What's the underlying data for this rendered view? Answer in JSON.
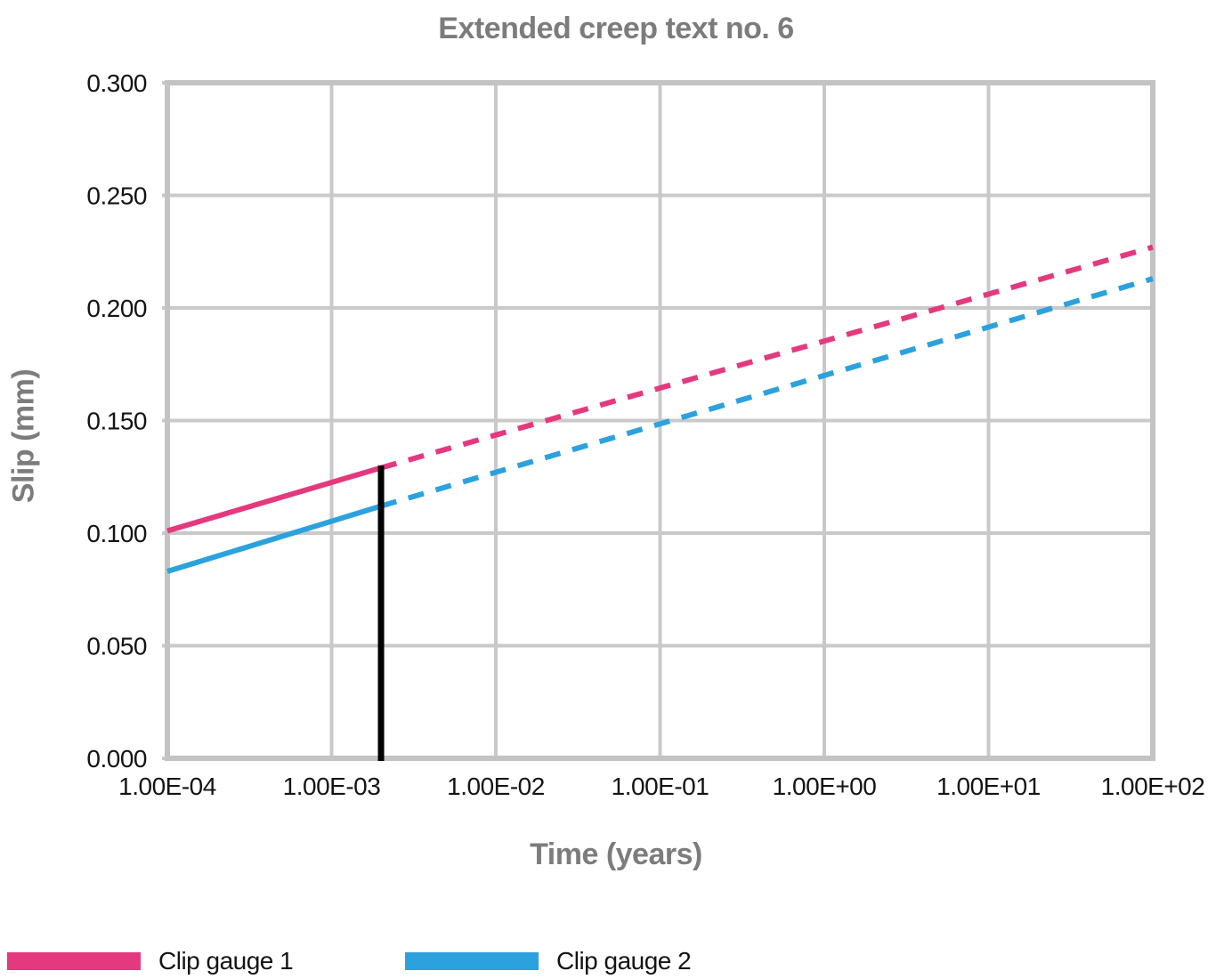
{
  "chart_data": {
    "type": "line",
    "title": "Extended creep text no. 6",
    "xlabel": "Time (years)",
    "ylabel": "Slip (mm)",
    "x_scale": "log",
    "xlim": [
      0.0001,
      100
    ],
    "ylim": [
      0,
      0.3
    ],
    "grid": true,
    "x_ticks": [
      {
        "value": 0.0001,
        "label": "1.00E-04"
      },
      {
        "value": 0.001,
        "label": "1.00E-03"
      },
      {
        "value": 0.01,
        "label": "1.00E-02"
      },
      {
        "value": 0.1,
        "label": "1.00E-01"
      },
      {
        "value": 1,
        "label": "1.00E+00"
      },
      {
        "value": 10,
        "label": "1.00E+01"
      },
      {
        "value": 100,
        "label": "1.00E+02"
      }
    ],
    "y_ticks": [
      {
        "value": 0.0,
        "label": "0.000"
      },
      {
        "value": 0.05,
        "label": "0.050"
      },
      {
        "value": 0.1,
        "label": "0.100"
      },
      {
        "value": 0.15,
        "label": "0.150"
      },
      {
        "value": 0.2,
        "label": "0.200"
      },
      {
        "value": 0.25,
        "label": "0.250"
      },
      {
        "value": 0.3,
        "label": "0.300"
      }
    ],
    "series": [
      {
        "name": "Clip gauge 1",
        "color": "#E4397E",
        "solid_segment": {
          "x": [
            0.0001,
            0.002
          ],
          "y": [
            0.101,
            0.129
          ]
        },
        "dashed_segment": {
          "x": [
            0.002,
            100
          ],
          "y": [
            0.129,
            0.227
          ]
        }
      },
      {
        "name": "Clip gauge 2",
        "color": "#2BA2DE",
        "solid_segment": {
          "x": [
            0.0001,
            0.002
          ],
          "y": [
            0.083,
            0.112
          ]
        },
        "dashed_segment": {
          "x": [
            0.002,
            100
          ],
          "y": [
            0.112,
            0.213
          ]
        }
      }
    ],
    "marker_line": {
      "x": 0.002,
      "y_from": 0,
      "y_to": 0.13,
      "color": "#000000"
    },
    "grid_color": "#C9C9C9",
    "border_color": "#C3C3C3",
    "title_color": "#7C7C7C",
    "tick_color": "#141414",
    "legend_position": "bottom-left"
  }
}
